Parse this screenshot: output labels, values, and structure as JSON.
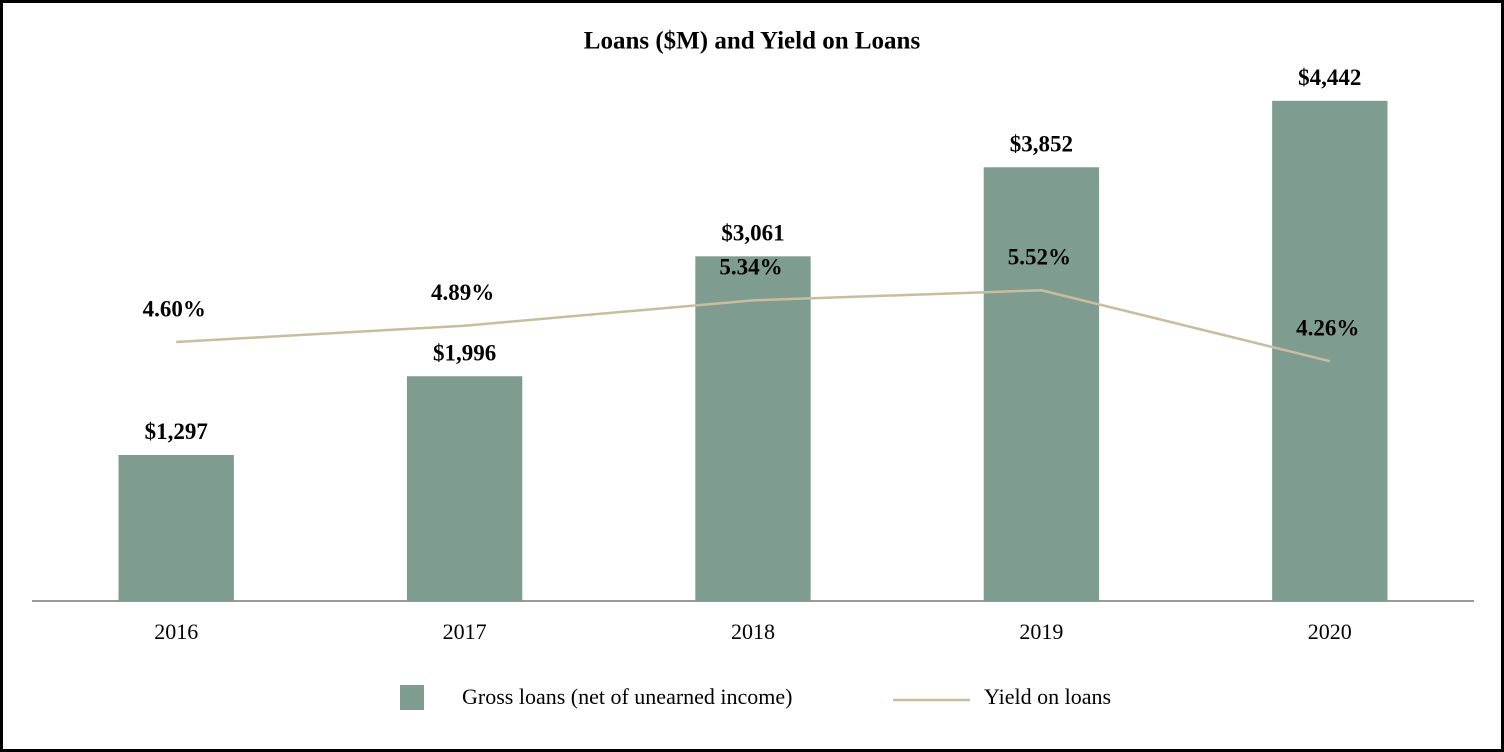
{
  "chart_data": {
    "type": "bar",
    "title": "Loans ($M) and Yield on Loans",
    "categories": [
      "2016",
      "2017",
      "2018",
      "2019",
      "2020"
    ],
    "series": [
      {
        "name": "Gross loans (net of unearned income)",
        "type": "bar",
        "color": "#7f9c90",
        "values": [
          1297,
          1996,
          3061,
          3852,
          4442
        ],
        "value_labels": [
          "$1,297",
          "$1,996",
          "$3,061",
          "$3,852",
          "$4,442"
        ]
      },
      {
        "name": "Yield on loans",
        "type": "line",
        "axis": "y2",
        "color": "#c9bd9f",
        "values": [
          4.6,
          4.89,
          5.34,
          5.52,
          4.26
        ],
        "value_labels": [
          "4.60%",
          "4.89%",
          "5.34%",
          "5.52%",
          "4.26%"
        ]
      }
    ],
    "ylim": [
      0,
      5000
    ],
    "y2lim": [
      0,
      10
    ]
  }
}
